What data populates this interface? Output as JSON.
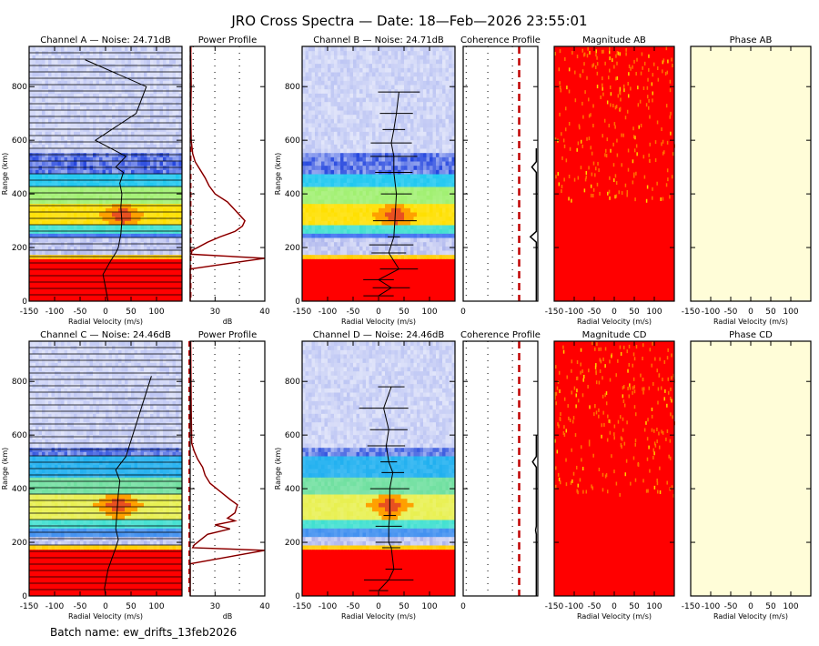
{
  "title": "JRO Cross Spectra — Date: 18—Feb—2026 23:55:01",
  "footer": "Batch name: ew_drifts_13feb2026",
  "chart_data": [
    {
      "id": "channel_a",
      "type": "heatmap",
      "title": "Channel A — Noise: 24.71dB",
      "noise_db": 24.71,
      "xlabel": "Radial Velocity (m/s)",
      "ylabel": "Range (km)",
      "xlim": [
        -150,
        150
      ],
      "ylim": [
        0,
        950
      ],
      "xticks": [
        -150,
        -100,
        -50,
        0,
        50,
        100
      ],
      "yticks": [
        0,
        200,
        400,
        600,
        800
      ],
      "bands": [
        {
          "from": 0,
          "to": 165,
          "level": "saturated",
          "color": "#ff0000"
        },
        {
          "from": 165,
          "to": 180,
          "level": "high",
          "color": "#ffcc00"
        },
        {
          "from": 180,
          "to": 230,
          "level": "low",
          "color": "#b0b8ee"
        },
        {
          "from": 230,
          "to": 260,
          "level": "medium",
          "color": "#3f6ff0"
        },
        {
          "from": 260,
          "to": 280,
          "level": "medium",
          "color": "#40e0d0"
        },
        {
          "from": 280,
          "to": 360,
          "level": "high",
          "color": "#ffe000"
        },
        {
          "from": 360,
          "to": 420,
          "level": "medium",
          "color": "#a0f070"
        },
        {
          "from": 420,
          "to": 480,
          "level": "medium",
          "color": "#20c8f0"
        },
        {
          "from": 480,
          "to": 560,
          "level": "low",
          "color": "#3050e0"
        },
        {
          "from": 560,
          "to": 950,
          "level": "noise",
          "color": "#c0c8f4"
        }
      ],
      "peak": {
        "velocity": 32,
        "range": 320
      },
      "doppler_profile": [
        [
          5,
          0
        ],
        [
          0,
          50
        ],
        [
          -5,
          100
        ],
        [
          10,
          150
        ],
        [
          20,
          180
        ],
        [
          25,
          200
        ],
        [
          30,
          250
        ],
        [
          32,
          300
        ],
        [
          30,
          350
        ],
        [
          32,
          400
        ],
        [
          28,
          440
        ],
        [
          35,
          480
        ],
        [
          20,
          500
        ],
        [
          40,
          540
        ],
        [
          -20,
          600
        ],
        [
          60,
          700
        ],
        [
          80,
          800
        ],
        [
          -40,
          900
        ]
      ]
    },
    {
      "id": "power_profile_a",
      "type": "line",
      "title": "Power Profile",
      "xlabel": "dB",
      "xlim": [
        25,
        40
      ],
      "ylim": [
        0,
        950
      ],
      "xticks": [
        30,
        40
      ],
      "noise_level_db": 24.71,
      "series": [
        {
          "name": "power",
          "points": [
            [
              25,
              0
            ],
            [
              25,
              60
            ],
            [
              25,
              120
            ],
            [
              40,
              160
            ],
            [
              25.2,
              175
            ],
            [
              25.4,
              190
            ],
            [
              26.5,
              200
            ],
            [
              28.5,
              220
            ],
            [
              31,
              240
            ],
            [
              34,
              260
            ],
            [
              35.5,
              280
            ],
            [
              36,
              300
            ],
            [
              35,
              320
            ],
            [
              34,
              340
            ],
            [
              32.5,
              370
            ],
            [
              30,
              400
            ],
            [
              28.8,
              430
            ],
            [
              28,
              460
            ],
            [
              27,
              490
            ],
            [
              26,
              520
            ],
            [
              25.5,
              550
            ],
            [
              25.2,
              600
            ],
            [
              25.1,
              700
            ],
            [
              25.2,
              800
            ],
            [
              25.1,
              950
            ]
          ]
        }
      ]
    },
    {
      "id": "channel_b",
      "type": "heatmap",
      "title": "Channel B — Noise: 24.71dB",
      "noise_db": 24.71,
      "xlabel": "Radial Velocity (m/s)",
      "ylabel": "Range (km)",
      "xlim": [
        -150,
        150
      ],
      "ylim": [
        0,
        950
      ],
      "xticks": [
        -150,
        -100,
        -50,
        0,
        50,
        100
      ],
      "yticks": [
        0,
        200,
        400,
        600,
        800
      ],
      "bands": [
        {
          "from": 0,
          "to": 165,
          "level": "saturated",
          "color": "#ff0000"
        },
        {
          "from": 165,
          "to": 180,
          "level": "high",
          "color": "#ffcc00"
        },
        {
          "from": 180,
          "to": 230,
          "level": "low",
          "color": "#b0b8ee"
        },
        {
          "from": 230,
          "to": 260,
          "level": "medium",
          "color": "#3f6ff0"
        },
        {
          "from": 260,
          "to": 280,
          "level": "medium",
          "color": "#40e0d0"
        },
        {
          "from": 280,
          "to": 360,
          "level": "high",
          "color": "#ffe000"
        },
        {
          "from": 360,
          "to": 420,
          "level": "medium",
          "color": "#a0f070"
        },
        {
          "from": 420,
          "to": 480,
          "level": "medium",
          "color": "#20c8f0"
        },
        {
          "from": 480,
          "to": 560,
          "level": "low",
          "color": "#3050e0"
        },
        {
          "from": 560,
          "to": 950,
          "level": "noise",
          "color": "#c0c8f4"
        }
      ],
      "peak": {
        "velocity": 32,
        "range": 320
      },
      "doppler_profile": [
        [
          0,
          20
        ],
        [
          25,
          50
        ],
        [
          0,
          80
        ],
        [
          40,
          120
        ],
        [
          20,
          180
        ],
        [
          25,
          210
        ],
        [
          30,
          240
        ],
        [
          32,
          300
        ],
        [
          35,
          400
        ],
        [
          30,
          480
        ],
        [
          30,
          540
        ],
        [
          25,
          590
        ],
        [
          30,
          640
        ],
        [
          35,
          700
        ],
        [
          40,
          780
        ]
      ]
    },
    {
      "id": "coherence_profile_ab",
      "type": "line",
      "title": "Coherence Profile",
      "xlim": [
        0,
        1
      ],
      "ylim": [
        0,
        950
      ],
      "xticks": [
        0
      ],
      "threshold": 0.75,
      "series": [
        {
          "name": "coherence",
          "points": [
            [
              0.98,
              0
            ],
            [
              0.98,
              220
            ],
            [
              0.9,
              240
            ],
            [
              0.98,
              260
            ],
            [
              0.98,
              480
            ],
            [
              0.92,
              500
            ],
            [
              0.98,
              520
            ],
            [
              0.98,
              570
            ]
          ]
        }
      ]
    },
    {
      "id": "magnitude_ab",
      "type": "heatmap",
      "title": "Magnitude AB",
      "xlabel": "Radial Velocity (m/s)",
      "xlim": [
        -150,
        150
      ],
      "ylim": [
        0,
        950
      ],
      "xticks": [
        -150,
        -100,
        -50,
        0,
        50,
        100
      ],
      "base_color": "#ff0000"
    },
    {
      "id": "phase_ab",
      "type": "heatmap",
      "title": "Phase AB",
      "xlabel": "Radial Velocity (m/s)",
      "xlim": [
        -150,
        150
      ],
      "ylim": [
        0,
        950
      ],
      "xticks": [
        -150,
        -100,
        -50,
        0,
        50,
        100
      ],
      "base_color": "#fffdd8"
    },
    {
      "id": "channel_c",
      "type": "heatmap",
      "title": "Channel C — Noise: 24.46dB",
      "noise_db": 24.46,
      "xlabel": "Radial Velocity (m/s)",
      "ylabel": "Range (km)",
      "xlim": [
        -150,
        150
      ],
      "ylim": [
        0,
        950
      ],
      "xticks": [
        -150,
        -100,
        -50,
        0,
        50,
        100
      ],
      "yticks": [
        0,
        200,
        400,
        600,
        800
      ],
      "bands": [
        {
          "from": 0,
          "to": 175,
          "level": "saturated",
          "color": "#ff0000"
        },
        {
          "from": 175,
          "to": 185,
          "level": "high",
          "color": "#ffcc00"
        },
        {
          "from": 185,
          "to": 220,
          "level": "low",
          "color": "#b0b8ee"
        },
        {
          "from": 220,
          "to": 260,
          "level": "medium",
          "color": "#3f8ff0"
        },
        {
          "from": 260,
          "to": 290,
          "level": "medium",
          "color": "#40e0d0"
        },
        {
          "from": 290,
          "to": 380,
          "level": "high",
          "color": "#e8f050"
        },
        {
          "from": 380,
          "to": 440,
          "level": "medium",
          "color": "#70e0a0"
        },
        {
          "from": 440,
          "to": 520,
          "level": "medium",
          "color": "#20b0f0"
        },
        {
          "from": 520,
          "to": 560,
          "level": "low",
          "color": "#4060e0"
        },
        {
          "from": 560,
          "to": 950,
          "level": "noise",
          "color": "#c0c8f4"
        }
      ],
      "peak": {
        "velocity": 25,
        "range": 340
      },
      "doppler_profile": [
        [
          0,
          0
        ],
        [
          -2,
          30
        ],
        [
          5,
          100
        ],
        [
          20,
          180
        ],
        [
          25,
          210
        ],
        [
          20,
          250
        ],
        [
          22,
          300
        ],
        [
          25,
          380
        ],
        [
          28,
          430
        ],
        [
          20,
          470
        ],
        [
          40,
          520
        ],
        [
          70,
          700
        ],
        [
          90,
          820
        ]
      ]
    },
    {
      "id": "power_profile_c",
      "type": "line",
      "title": "Power Profile",
      "xlabel": "dB",
      "xlim": [
        25,
        40
      ],
      "ylim": [
        0,
        950
      ],
      "xticks": [
        30,
        40
      ],
      "noise_level_db": 24.46,
      "series": [
        {
          "name": "power",
          "points": [
            [
              25,
              0
            ],
            [
              25,
              60
            ],
            [
              25,
              120
            ],
            [
              40,
              170
            ],
            [
              25.5,
              180
            ],
            [
              25.8,
              190
            ],
            [
              28.5,
              230
            ],
            [
              33,
              250
            ],
            [
              30,
              265
            ],
            [
              34,
              280
            ],
            [
              32.5,
              290
            ],
            [
              34,
              310
            ],
            [
              34.5,
              340
            ],
            [
              33,
              360
            ],
            [
              31,
              390
            ],
            [
              29,
              420
            ],
            [
              28,
              450
            ],
            [
              27.5,
              480
            ],
            [
              26.5,
              510
            ],
            [
              25.8,
              540
            ],
            [
              25.3,
              570
            ],
            [
              25.2,
              700
            ],
            [
              25.1,
              950
            ]
          ]
        }
      ]
    },
    {
      "id": "channel_d",
      "type": "heatmap",
      "title": "Channel D — Noise: 24.46dB",
      "noise_db": 24.46,
      "xlabel": "Radial Velocity (m/s)",
      "ylabel": "Range (km)",
      "xlim": [
        -150,
        150
      ],
      "ylim": [
        0,
        950
      ],
      "xticks": [
        -150,
        -100,
        -50,
        0,
        50,
        100
      ],
      "yticks": [
        0,
        200,
        400,
        600,
        800
      ],
      "bands": [
        {
          "from": 0,
          "to": 175,
          "level": "saturated",
          "color": "#ff0000"
        },
        {
          "from": 175,
          "to": 185,
          "level": "high",
          "color": "#ffcc00"
        },
        {
          "from": 185,
          "to": 220,
          "level": "low",
          "color": "#b0b8ee"
        },
        {
          "from": 220,
          "to": 260,
          "level": "medium",
          "color": "#3f8ff0"
        },
        {
          "from": 260,
          "to": 290,
          "level": "medium",
          "color": "#40e0d0"
        },
        {
          "from": 290,
          "to": 380,
          "level": "high",
          "color": "#e8f050"
        },
        {
          "from": 380,
          "to": 440,
          "level": "medium",
          "color": "#70e0a0"
        },
        {
          "from": 440,
          "to": 520,
          "level": "medium",
          "color": "#20b0f0"
        },
        {
          "from": 520,
          "to": 560,
          "level": "low",
          "color": "#4060e0"
        },
        {
          "from": 560,
          "to": 950,
          "level": "noise",
          "color": "#c0c8f4"
        }
      ],
      "peak": {
        "velocity": 22,
        "range": 340
      },
      "doppler_profile": [
        [
          0,
          20
        ],
        [
          20,
          60
        ],
        [
          30,
          100
        ],
        [
          25,
          180
        ],
        [
          20,
          200
        ],
        [
          20,
          260
        ],
        [
          22,
          300
        ],
        [
          22,
          400
        ],
        [
          28,
          460
        ],
        [
          20,
          500
        ],
        [
          15,
          560
        ],
        [
          20,
          620
        ],
        [
          10,
          700
        ],
        [
          25,
          780
        ]
      ]
    },
    {
      "id": "coherence_profile_cd",
      "type": "line",
      "title": "Coherence Profile",
      "xlim": [
        0,
        1
      ],
      "ylim": [
        0,
        950
      ],
      "xticks": [
        0
      ],
      "threshold": 0.75,
      "series": [
        {
          "name": "coherence",
          "points": [
            [
              0.98,
              0
            ],
            [
              0.98,
              230
            ],
            [
              0.97,
              245
            ],
            [
              0.98,
              260
            ],
            [
              0.98,
              480
            ],
            [
              0.93,
              500
            ],
            [
              0.98,
              520
            ],
            [
              0.98,
              600
            ]
          ]
        }
      ]
    },
    {
      "id": "magnitude_cd",
      "type": "heatmap",
      "title": "Magnitude CD",
      "xlabel": "Radial Velocity (m/s)",
      "xlim": [
        -150,
        150
      ],
      "ylim": [
        0,
        950
      ],
      "xticks": [
        -150,
        -100,
        -50,
        0,
        50,
        100
      ],
      "base_color": "#ff0000"
    },
    {
      "id": "phase_cd",
      "type": "heatmap",
      "title": "Phase CD",
      "xlabel": "Radial Velocity (m/s)",
      "xlim": [
        -150,
        150
      ],
      "ylim": [
        0,
        950
      ],
      "xticks": [
        -150,
        -100,
        -50,
        0,
        50,
        100
      ],
      "base_color": "#fffdd8"
    }
  ]
}
